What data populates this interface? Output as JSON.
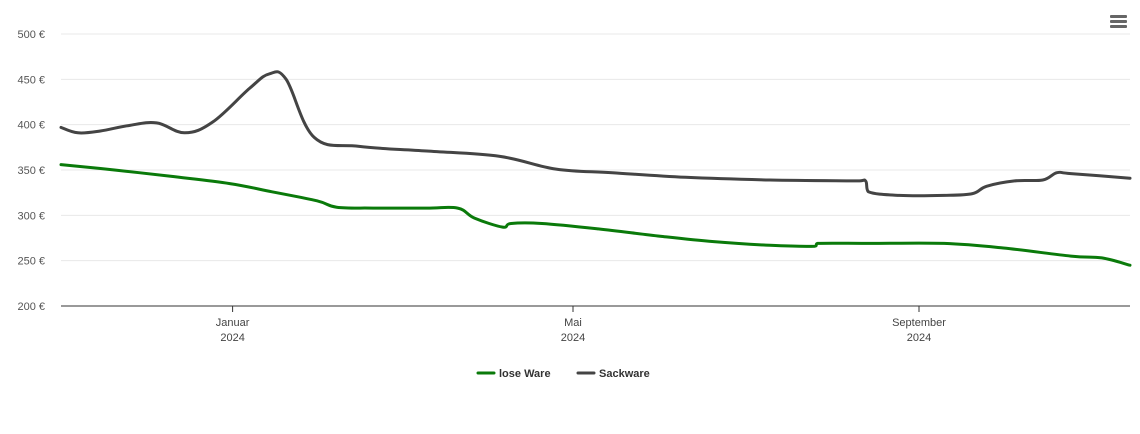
{
  "chart_data": {
    "type": "line",
    "y_unit_suffix": " €",
    "ylim": [
      200,
      500
    ],
    "y_ticks": [
      200,
      250,
      300,
      350,
      400,
      450,
      500
    ],
    "y_tick_labels": [
      "200 €",
      "250 €",
      "300 €",
      "350 €",
      "400 €",
      "450 €",
      "500 €"
    ],
    "x_range": [
      "2023-11-01",
      "2024-11-15"
    ],
    "x_ticks": [
      {
        "date": "2024-01-01",
        "label": "Januar",
        "year": "2024"
      },
      {
        "date": "2024-05-01",
        "label": "Mai",
        "year": "2024"
      },
      {
        "date": "2024-09-01",
        "label": "September",
        "year": "2024"
      }
    ],
    "grid": true,
    "legend_position": "bottom-center",
    "series": [
      {
        "name": "lose Ware",
        "color": "#0a7a0a",
        "points": [
          [
            "2023-11-01",
            356
          ],
          [
            "2023-11-20",
            350
          ],
          [
            "2023-12-10",
            343
          ],
          [
            "2023-12-31",
            335
          ],
          [
            "2024-01-15",
            326
          ],
          [
            "2024-01-31",
            316
          ],
          [
            "2024-02-07",
            309
          ],
          [
            "2024-02-20",
            308
          ],
          [
            "2024-03-10",
            308
          ],
          [
            "2024-03-21",
            308
          ],
          [
            "2024-03-27",
            297
          ],
          [
            "2024-04-06",
            287
          ],
          [
            "2024-04-09",
            291
          ],
          [
            "2024-04-20",
            291
          ],
          [
            "2024-05-10",
            285
          ],
          [
            "2024-06-01",
            277
          ],
          [
            "2024-06-20",
            271
          ],
          [
            "2024-07-10",
            267
          ],
          [
            "2024-07-26",
            266
          ],
          [
            "2024-07-27",
            269
          ],
          [
            "2024-08-15",
            269
          ],
          [
            "2024-09-10",
            269
          ],
          [
            "2024-10-01",
            264
          ],
          [
            "2024-10-25",
            255
          ],
          [
            "2024-11-05",
            253
          ],
          [
            "2024-11-15",
            245
          ]
        ]
      },
      {
        "name": "Sackware",
        "color": "#444444",
        "points": [
          [
            "2023-11-01",
            397
          ],
          [
            "2023-11-07",
            391
          ],
          [
            "2023-11-15",
            393
          ],
          [
            "2023-11-25",
            399
          ],
          [
            "2023-12-05",
            402
          ],
          [
            "2023-12-15",
            391
          ],
          [
            "2023-12-25",
            403
          ],
          [
            "2024-01-07",
            440
          ],
          [
            "2024-01-14",
            456
          ],
          [
            "2024-01-20",
            450
          ],
          [
            "2024-01-30",
            386
          ],
          [
            "2024-02-15",
            376
          ],
          [
            "2024-03-10",
            371
          ],
          [
            "2024-04-05",
            365
          ],
          [
            "2024-04-25",
            351
          ],
          [
            "2024-05-15",
            347
          ],
          [
            "2024-06-10",
            342
          ],
          [
            "2024-07-10",
            339
          ],
          [
            "2024-08-10",
            338
          ],
          [
            "2024-08-13",
            338
          ],
          [
            "2024-08-14",
            326
          ],
          [
            "2024-08-25",
            322
          ],
          [
            "2024-09-10",
            322
          ],
          [
            "2024-09-20",
            324
          ],
          [
            "2024-09-25",
            332
          ],
          [
            "2024-10-05",
            338
          ],
          [
            "2024-10-15",
            339
          ],
          [
            "2024-10-20",
            347
          ],
          [
            "2024-10-25",
            346
          ],
          [
            "2024-11-15",
            341
          ]
        ]
      }
    ]
  },
  "toolbar": {
    "menu_icon": "hamburger-menu-icon"
  }
}
